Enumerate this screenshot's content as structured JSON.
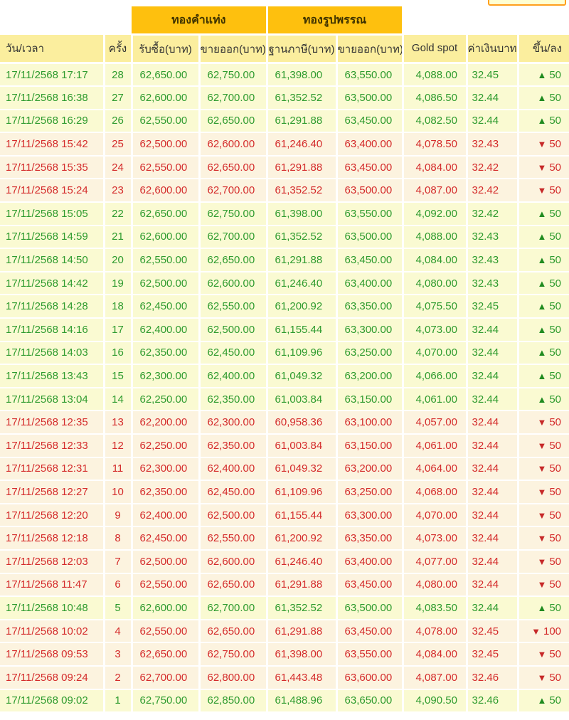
{
  "colors": {
    "group_header_bg": "#FEC00E",
    "group_header_text": "#3E3200",
    "column_header_bg": "#FBEE9E",
    "column_header_text": "#333333",
    "up_row_bg": "#FAFAD2",
    "down_row_bg": "#FCF3DF",
    "up_text": "#2E9B2E",
    "down_text": "#D42B2B",
    "up_arrow": "#1F8B1F",
    "down_arrow": "#C62828",
    "gridline": "#FFFFFF",
    "cutoff_border": "#FFA01E",
    "cutoff_fill": "#FFFFD2",
    "page_bg": "#FFFFFF"
  },
  "icons": {
    "up": "▲",
    "down": "▼"
  },
  "table": {
    "group_headers": [
      "ทองคำแท่ง",
      "ทองรูปพรรณ"
    ],
    "columns": [
      "วัน/เวลา",
      "ครั้ง",
      "รับซื้อ(บาท)",
      "ขายออก(บาท)",
      "ฐานภาษี(บาท)",
      "ขายออก(บาท)",
      "Gold spot",
      "ค่าเงินบาท",
      "ขึ้น/ลง"
    ],
    "rows": [
      {
        "datetime": "17/11/2568 17:17",
        "round": "28",
        "buy": "62,650.00",
        "sell": "62,750.00",
        "tax_base": "61,398.00",
        "ornament_sell": "63,550.00",
        "gold_spot": "4,088.00",
        "baht_rate": "32.45",
        "direction": "up",
        "change": "50"
      },
      {
        "datetime": "17/11/2568 16:38",
        "round": "27",
        "buy": "62,600.00",
        "sell": "62,700.00",
        "tax_base": "61,352.52",
        "ornament_sell": "63,500.00",
        "gold_spot": "4,086.50",
        "baht_rate": "32.44",
        "direction": "up",
        "change": "50"
      },
      {
        "datetime": "17/11/2568 16:29",
        "round": "26",
        "buy": "62,550.00",
        "sell": "62,650.00",
        "tax_base": "61,291.88",
        "ornament_sell": "63,450.00",
        "gold_spot": "4,082.50",
        "baht_rate": "32.44",
        "direction": "up",
        "change": "50"
      },
      {
        "datetime": "17/11/2568 15:42",
        "round": "25",
        "buy": "62,500.00",
        "sell": "62,600.00",
        "tax_base": "61,246.40",
        "ornament_sell": "63,400.00",
        "gold_spot": "4,078.50",
        "baht_rate": "32.43",
        "direction": "down",
        "change": "50"
      },
      {
        "datetime": "17/11/2568 15:35",
        "round": "24",
        "buy": "62,550.00",
        "sell": "62,650.00",
        "tax_base": "61,291.88",
        "ornament_sell": "63,450.00",
        "gold_spot": "4,084.00",
        "baht_rate": "32.42",
        "direction": "down",
        "change": "50"
      },
      {
        "datetime": "17/11/2568 15:24",
        "round": "23",
        "buy": "62,600.00",
        "sell": "62,700.00",
        "tax_base": "61,352.52",
        "ornament_sell": "63,500.00",
        "gold_spot": "4,087.00",
        "baht_rate": "32.42",
        "direction": "down",
        "change": "50"
      },
      {
        "datetime": "17/11/2568 15:05",
        "round": "22",
        "buy": "62,650.00",
        "sell": "62,750.00",
        "tax_base": "61,398.00",
        "ornament_sell": "63,550.00",
        "gold_spot": "4,092.00",
        "baht_rate": "32.42",
        "direction": "up",
        "change": "50"
      },
      {
        "datetime": "17/11/2568 14:59",
        "round": "21",
        "buy": "62,600.00",
        "sell": "62,700.00",
        "tax_base": "61,352.52",
        "ornament_sell": "63,500.00",
        "gold_spot": "4,088.00",
        "baht_rate": "32.43",
        "direction": "up",
        "change": "50"
      },
      {
        "datetime": "17/11/2568 14:50",
        "round": "20",
        "buy": "62,550.00",
        "sell": "62,650.00",
        "tax_base": "61,291.88",
        "ornament_sell": "63,450.00",
        "gold_spot": "4,084.00",
        "baht_rate": "32.43",
        "direction": "up",
        "change": "50"
      },
      {
        "datetime": "17/11/2568 14:42",
        "round": "19",
        "buy": "62,500.00",
        "sell": "62,600.00",
        "tax_base": "61,246.40",
        "ornament_sell": "63,400.00",
        "gold_spot": "4,080.00",
        "baht_rate": "32.43",
        "direction": "up",
        "change": "50"
      },
      {
        "datetime": "17/11/2568 14:28",
        "round": "18",
        "buy": "62,450.00",
        "sell": "62,550.00",
        "tax_base": "61,200.92",
        "ornament_sell": "63,350.00",
        "gold_spot": "4,075.50",
        "baht_rate": "32.45",
        "direction": "up",
        "change": "50"
      },
      {
        "datetime": "17/11/2568 14:16",
        "round": "17",
        "buy": "62,400.00",
        "sell": "62,500.00",
        "tax_base": "61,155.44",
        "ornament_sell": "63,300.00",
        "gold_spot": "4,073.00",
        "baht_rate": "32.44",
        "direction": "up",
        "change": "50"
      },
      {
        "datetime": "17/11/2568 14:03",
        "round": "16",
        "buy": "62,350.00",
        "sell": "62,450.00",
        "tax_base": "61,109.96",
        "ornament_sell": "63,250.00",
        "gold_spot": "4,070.00",
        "baht_rate": "32.44",
        "direction": "up",
        "change": "50"
      },
      {
        "datetime": "17/11/2568 13:43",
        "round": "15",
        "buy": "62,300.00",
        "sell": "62,400.00",
        "tax_base": "61,049.32",
        "ornament_sell": "63,200.00",
        "gold_spot": "4,066.00",
        "baht_rate": "32.44",
        "direction": "up",
        "change": "50"
      },
      {
        "datetime": "17/11/2568 13:04",
        "round": "14",
        "buy": "62,250.00",
        "sell": "62,350.00",
        "tax_base": "61,003.84",
        "ornament_sell": "63,150.00",
        "gold_spot": "4,061.00",
        "baht_rate": "32.44",
        "direction": "up",
        "change": "50"
      },
      {
        "datetime": "17/11/2568 12:35",
        "round": "13",
        "buy": "62,200.00",
        "sell": "62,300.00",
        "tax_base": "60,958.36",
        "ornament_sell": "63,100.00",
        "gold_spot": "4,057.00",
        "baht_rate": "32.44",
        "direction": "down",
        "change": "50"
      },
      {
        "datetime": "17/11/2568 12:33",
        "round": "12",
        "buy": "62,250.00",
        "sell": "62,350.00",
        "tax_base": "61,003.84",
        "ornament_sell": "63,150.00",
        "gold_spot": "4,061.00",
        "baht_rate": "32.44",
        "direction": "down",
        "change": "50"
      },
      {
        "datetime": "17/11/2568 12:31",
        "round": "11",
        "buy": "62,300.00",
        "sell": "62,400.00",
        "tax_base": "61,049.32",
        "ornament_sell": "63,200.00",
        "gold_spot": "4,064.00",
        "baht_rate": "32.44",
        "direction": "down",
        "change": "50"
      },
      {
        "datetime": "17/11/2568 12:27",
        "round": "10",
        "buy": "62,350.00",
        "sell": "62,450.00",
        "tax_base": "61,109.96",
        "ornament_sell": "63,250.00",
        "gold_spot": "4,068.00",
        "baht_rate": "32.44",
        "direction": "down",
        "change": "50"
      },
      {
        "datetime": "17/11/2568 12:20",
        "round": "9",
        "buy": "62,400.00",
        "sell": "62,500.00",
        "tax_base": "61,155.44",
        "ornament_sell": "63,300.00",
        "gold_spot": "4,070.00",
        "baht_rate": "32.44",
        "direction": "down",
        "change": "50"
      },
      {
        "datetime": "17/11/2568 12:18",
        "round": "8",
        "buy": "62,450.00",
        "sell": "62,550.00",
        "tax_base": "61,200.92",
        "ornament_sell": "63,350.00",
        "gold_spot": "4,073.00",
        "baht_rate": "32.44",
        "direction": "down",
        "change": "50"
      },
      {
        "datetime": "17/11/2568 12:03",
        "round": "7",
        "buy": "62,500.00",
        "sell": "62,600.00",
        "tax_base": "61,246.40",
        "ornament_sell": "63,400.00",
        "gold_spot": "4,077.00",
        "baht_rate": "32.44",
        "direction": "down",
        "change": "50"
      },
      {
        "datetime": "17/11/2568 11:47",
        "round": "6",
        "buy": "62,550.00",
        "sell": "62,650.00",
        "tax_base": "61,291.88",
        "ornament_sell": "63,450.00",
        "gold_spot": "4,080.00",
        "baht_rate": "32.44",
        "direction": "down",
        "change": "50"
      },
      {
        "datetime": "17/11/2568 10:48",
        "round": "5",
        "buy": "62,600.00",
        "sell": "62,700.00",
        "tax_base": "61,352.52",
        "ornament_sell": "63,500.00",
        "gold_spot": "4,083.50",
        "baht_rate": "32.44",
        "direction": "up",
        "change": "50"
      },
      {
        "datetime": "17/11/2568 10:02",
        "round": "4",
        "buy": "62,550.00",
        "sell": "62,650.00",
        "tax_base": "61,291.88",
        "ornament_sell": "63,450.00",
        "gold_spot": "4,078.00",
        "baht_rate": "32.45",
        "direction": "down",
        "change": "100"
      },
      {
        "datetime": "17/11/2568 09:53",
        "round": "3",
        "buy": "62,650.00",
        "sell": "62,750.00",
        "tax_base": "61,398.00",
        "ornament_sell": "63,550.00",
        "gold_spot": "4,084.00",
        "baht_rate": "32.45",
        "direction": "down",
        "change": "50"
      },
      {
        "datetime": "17/11/2568 09:24",
        "round": "2",
        "buy": "62,700.00",
        "sell": "62,800.00",
        "tax_base": "61,443.48",
        "ornament_sell": "63,600.00",
        "gold_spot": "4,087.00",
        "baht_rate": "32.46",
        "direction": "down",
        "change": "50"
      },
      {
        "datetime": "17/11/2568 09:02",
        "round": "1",
        "buy": "62,750.00",
        "sell": "62,850.00",
        "tax_base": "61,488.96",
        "ornament_sell": "63,650.00",
        "gold_spot": "4,090.50",
        "baht_rate": "32.46",
        "direction": "up",
        "change": "50"
      }
    ]
  }
}
